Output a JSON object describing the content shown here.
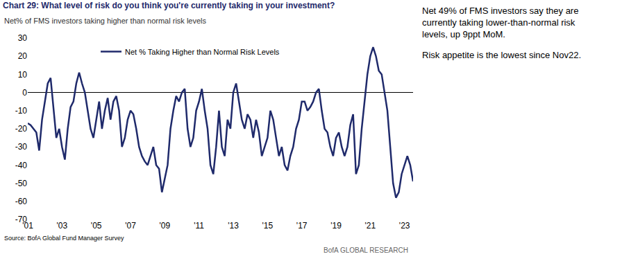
{
  "chart_data": {
    "type": "line",
    "title": "Chart 29: What level of risk do you think you're currently taking in your investment?",
    "subtitle": "Net% of FMS investors taking higher than normal risk levels",
    "annotations": [
      "Net 49% of FMS investors say they are currently taking lower-than-normal risk levels, up 9ppt MoM.",
      "Risk appetite is the lowest since Nov22."
    ],
    "source": "Source: BofA Global Fund Manager Survey",
    "footer": "BofA GLOBAL RESEARCH",
    "legend": "upper left",
    "grid": false,
    "ylim": [
      -70,
      30
    ],
    "yticks": [
      -70,
      -60,
      -50,
      -40,
      -30,
      -20,
      -10,
      0,
      10,
      20,
      30
    ],
    "categories": [
      "'01",
      null,
      null,
      null,
      null,
      null,
      null,
      null,
      null,
      null,
      null,
      null,
      "'03",
      null,
      null,
      null,
      null,
      null,
      null,
      null,
      null,
      null,
      null,
      null,
      "'05",
      null,
      null,
      null,
      null,
      null,
      null,
      null,
      null,
      null,
      null,
      null,
      "'07",
      null,
      null,
      null,
      null,
      null,
      null,
      null,
      null,
      null,
      null,
      null,
      "'09",
      null,
      null,
      null,
      null,
      null,
      null,
      null,
      null,
      null,
      null,
      null,
      "'11",
      null,
      null,
      null,
      null,
      null,
      null,
      null,
      null,
      null,
      null,
      null,
      "'13",
      null,
      null,
      null,
      null,
      null,
      null,
      null,
      null,
      null,
      null,
      null,
      "'15",
      null,
      null,
      null,
      null,
      null,
      null,
      null,
      null,
      null,
      null,
      null,
      "'17",
      null,
      null,
      null,
      null,
      null,
      null,
      null,
      null,
      null,
      null,
      null,
      "'19",
      null,
      null,
      null,
      null,
      null,
      null,
      null,
      null,
      null,
      null,
      null,
      "'21",
      null,
      null,
      null,
      null,
      null,
      null,
      null,
      null,
      null,
      null,
      null,
      "'23",
      null,
      null,
      null
    ],
    "series": [
      {
        "name": "Net % Taking Higher than Normal Risk Levels",
        "color": "#1f2a6b",
        "line_style": "solid",
        "values": [
          -17,
          -18,
          -20,
          -22,
          -32,
          -15,
          -5,
          5,
          8,
          -10,
          -25,
          -20,
          -30,
          -37,
          -20,
          -8,
          -5,
          5,
          11,
          5,
          0,
          -10,
          -20,
          -25,
          -15,
          -5,
          -20,
          -10,
          -3,
          -15,
          -5,
          -2,
          -10,
          -30,
          -25,
          -15,
          -10,
          -12,
          -20,
          -30,
          -35,
          -38,
          -40,
          -35,
          -30,
          -40,
          -42,
          -55,
          -48,
          -40,
          -20,
          -10,
          -2,
          -5,
          0,
          2,
          -20,
          -30,
          -25,
          -10,
          -5,
          2,
          -10,
          -20,
          -40,
          -45,
          -30,
          -10,
          -30,
          -35,
          -15,
          -20,
          0,
          5,
          -5,
          -15,
          -20,
          -12,
          -15,
          -25,
          -15,
          -22,
          -35,
          -30,
          -25,
          -10,
          -15,
          -25,
          -35,
          -30,
          -40,
          -43,
          -35,
          -30,
          -20,
          -15,
          -5,
          -5,
          -10,
          -8,
          -5,
          0,
          2,
          -10,
          -20,
          -22,
          -30,
          -35,
          -25,
          -22,
          -30,
          -35,
          -30,
          -18,
          -12,
          -45,
          -40,
          -20,
          -5,
          10,
          20,
          25,
          20,
          12,
          10,
          0,
          -10,
          -30,
          -50,
          -58,
          -55,
          -45,
          -40,
          -35,
          -40,
          -49
        ]
      }
    ]
  }
}
